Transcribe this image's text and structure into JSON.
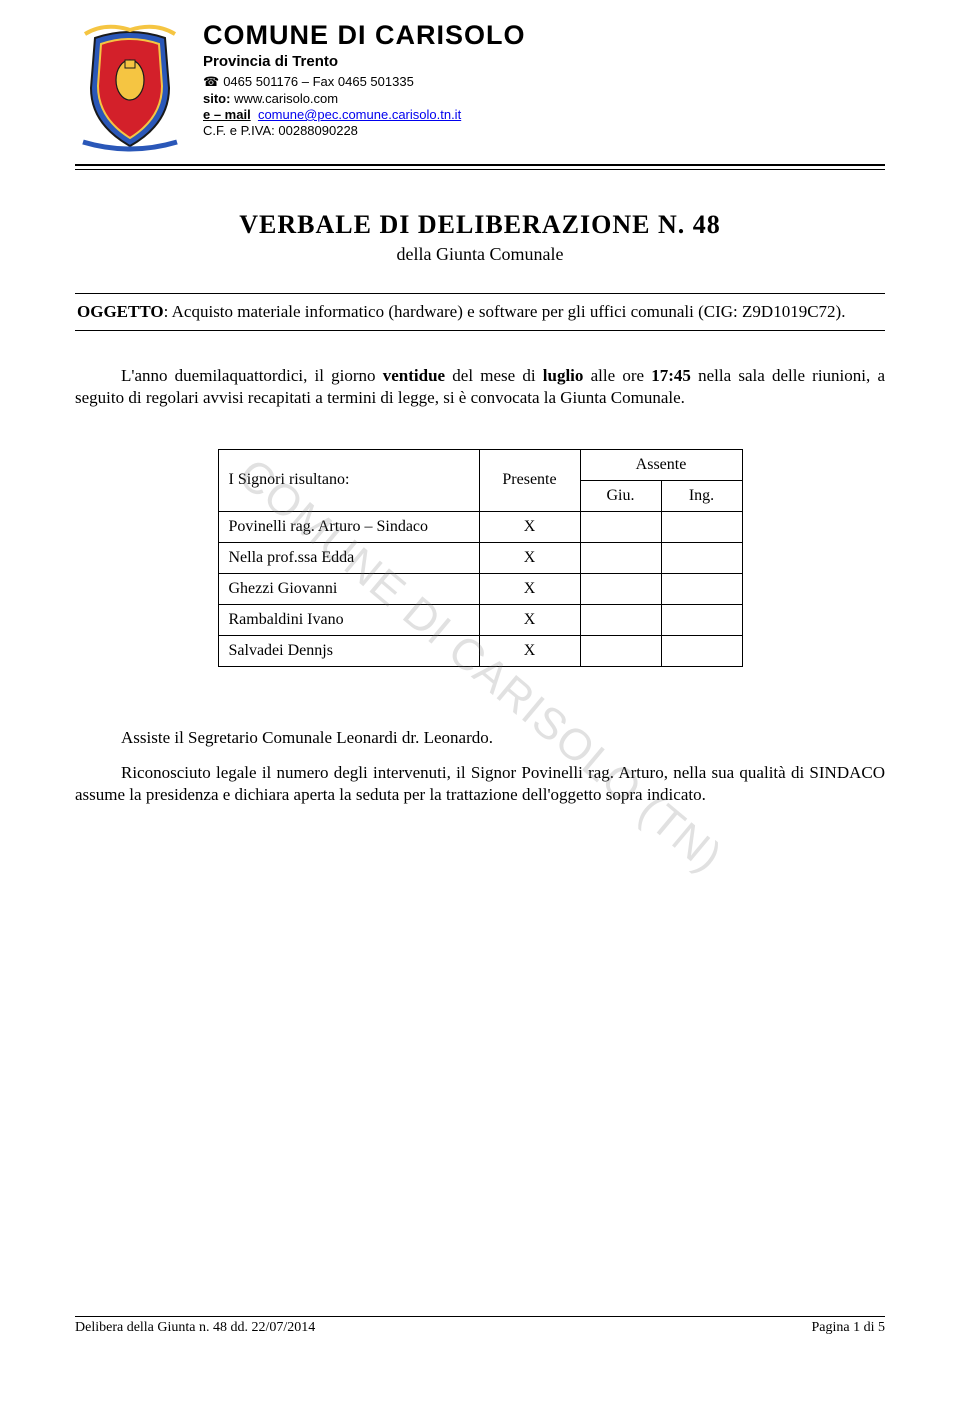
{
  "header": {
    "org_name": "COMUNE  DI  CARISOLO",
    "province": "Provincia di Trento",
    "phone_fax": "0465 501176 – Fax 0465 501335",
    "sito_label": "sito:",
    "sito_value": "www.carisolo.com",
    "email_label": "e – mail",
    "email_value": "comune@pec.comune.carisolo.tn.it",
    "cf_piva": "C.F. e P.IVA: 00288090228"
  },
  "title": {
    "main": "VERBALE  DI  DELIBERAZIONE  N.  48",
    "sub": "della Giunta Comunale"
  },
  "oggetto": {
    "label": "OGGETTO",
    "text": ": Acquisto materiale informatico (hardware) e software per gli uffici comunali (CIG: Z9D1019C72)."
  },
  "body": {
    "p1_pre": "L'anno duemilaquattordici, il giorno ",
    "p1_bold1": "ventidue",
    "p1_mid": " del mese di ",
    "p1_bold2": "luglio",
    "p1_post": " alle ore ",
    "p1_bold3": "17:45",
    "p1_end": " nella sala delle riunioni, a seguito di regolari avvisi recapitati a termini di legge, si è convocata la Giunta Comunale.",
    "p2": "Assiste il Segretario Comunale Leonardi dr. Leonardo.",
    "p3": "Riconosciuto legale il numero degli intervenuti, il Signor Povinelli rag. Arturo, nella sua qualità di SINDACO assume la presidenza e dichiara aperta la seduta per la trattazione dell'oggetto sopra indicato."
  },
  "table": {
    "header_name": "I Signori risultano:",
    "header_presente": "Presente",
    "header_assente": "Assente",
    "header_giu": "Giu.",
    "header_ing": "Ing.",
    "rows": [
      {
        "name": "Povinelli rag. Arturo – Sindaco",
        "presente": "X",
        "giu": "",
        "ing": ""
      },
      {
        "name": "Nella prof.ssa Edda",
        "presente": "X",
        "giu": "",
        "ing": ""
      },
      {
        "name": "Ghezzi Giovanni",
        "presente": "X",
        "giu": "",
        "ing": ""
      },
      {
        "name": "Rambaldini Ivano",
        "presente": "X",
        "giu": "",
        "ing": ""
      },
      {
        "name": "Salvadei Dennjs",
        "presente": "X",
        "giu": "",
        "ing": ""
      }
    ]
  },
  "watermark": "COMUNE DI CARISOLO (TN)",
  "footer": {
    "left": "Delibera della Giunta n. 48 dd. 22/07/2014",
    "right": "Pagina 1 di 5"
  },
  "crest": {
    "shield_blue": "#2a57b8",
    "shield_red": "#d3202a",
    "gold": "#f5c542",
    "outline": "#1a1a1a"
  }
}
